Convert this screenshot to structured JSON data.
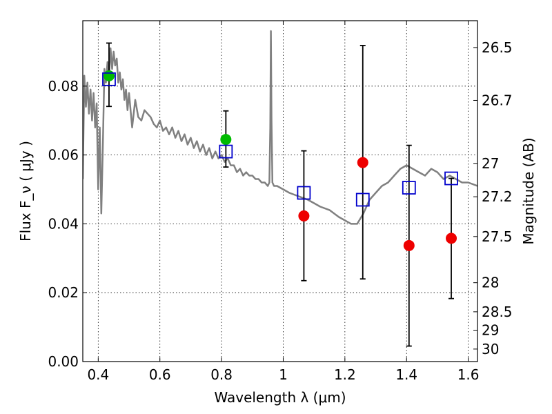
{
  "chart_data": {
    "type": "scatter",
    "title": "",
    "xlabel": "Wavelength  λ (μm)",
    "ylabel": "Flux  F_ν  ( μJy )",
    "y2label": "Magnitude (AB)",
    "xlim": [
      0.35,
      1.63
    ],
    "ylim": [
      0.0,
      0.099
    ],
    "grid": true,
    "xticks": [
      0.4,
      0.6,
      0.8,
      1.0,
      1.2,
      1.4,
      1.6
    ],
    "xtick_labels": [
      "0.4",
      "0.6",
      "0.8",
      "1",
      "1.2",
      "1.4",
      "1.6"
    ],
    "yticks": [
      0.0,
      0.02,
      0.04,
      0.06,
      0.08
    ],
    "ytick_labels": [
      "0.00",
      "0.02",
      "0.04",
      "0.06",
      "0.08"
    ],
    "y2ticks": [
      26.5,
      26.7,
      27.0,
      27.2,
      27.5,
      28.0,
      28.5,
      29.0,
      30.0
    ],
    "y2tick_labels": [
      "26.5",
      "26.7",
      "27",
      "27.2",
      "27.5",
      "28",
      "28.5",
      "29",
      "30"
    ],
    "colors": {
      "template": "#808080",
      "model": "#0000cc",
      "detection": "#00bb00",
      "nondetection": "#ee0000",
      "errorbar": "#000000"
    },
    "series": [
      {
        "marker": "line",
        "x": [
          0.35,
          0.355,
          0.36,
          0.365,
          0.37,
          0.375,
          0.38,
          0.385,
          0.39,
          0.395,
          0.4,
          0.405,
          0.41,
          0.415,
          0.42,
          0.425,
          0.43,
          0.435,
          0.44,
          0.445,
          0.45,
          0.455,
          0.46,
          0.465,
          0.47,
          0.475,
          0.48,
          0.485,
          0.49,
          0.495,
          0.5,
          0.51,
          0.52,
          0.53,
          0.54,
          0.55,
          0.56,
          0.57,
          0.58,
          0.59,
          0.6,
          0.61,
          0.62,
          0.63,
          0.64,
          0.65,
          0.66,
          0.67,
          0.68,
          0.69,
          0.7,
          0.71,
          0.72,
          0.73,
          0.74,
          0.75,
          0.76,
          0.77,
          0.78,
          0.79,
          0.8,
          0.81,
          0.82,
          0.83,
          0.84,
          0.85,
          0.86,
          0.87,
          0.88,
          0.89,
          0.9,
          0.91,
          0.92,
          0.93,
          0.94,
          0.95,
          0.955,
          0.958,
          0.96,
          0.962,
          0.965,
          0.97,
          0.98,
          1.0,
          1.02,
          1.05,
          1.08,
          1.1,
          1.12,
          1.15,
          1.18,
          1.2,
          1.22,
          1.24,
          1.26,
          1.28,
          1.3,
          1.32,
          1.34,
          1.36,
          1.38,
          1.4,
          1.42,
          1.44,
          1.46,
          1.48,
          1.5,
          1.52,
          1.54,
          1.56,
          1.58,
          1.6,
          1.63
        ],
        "y": [
          0.053,
          0.083,
          0.074,
          0.081,
          0.072,
          0.079,
          0.07,
          0.078,
          0.068,
          0.075,
          0.05,
          0.068,
          0.043,
          0.062,
          0.085,
          0.081,
          0.087,
          0.082,
          0.091,
          0.085,
          0.09,
          0.086,
          0.088,
          0.081,
          0.084,
          0.079,
          0.082,
          0.076,
          0.079,
          0.073,
          0.078,
          0.068,
          0.076,
          0.071,
          0.07,
          0.073,
          0.072,
          0.071,
          0.069,
          0.068,
          0.07,
          0.067,
          0.068,
          0.066,
          0.068,
          0.065,
          0.067,
          0.064,
          0.066,
          0.063,
          0.065,
          0.062,
          0.064,
          0.061,
          0.063,
          0.06,
          0.062,
          0.059,
          0.061,
          0.059,
          0.06,
          0.058,
          0.059,
          0.057,
          0.057,
          0.055,
          0.056,
          0.054,
          0.055,
          0.054,
          0.054,
          0.053,
          0.053,
          0.052,
          0.052,
          0.051,
          0.052,
          0.068,
          0.096,
          0.07,
          0.052,
          0.051,
          0.051,
          0.05,
          0.049,
          0.048,
          0.047,
          0.046,
          0.045,
          0.044,
          0.042,
          0.041,
          0.04,
          0.04,
          0.043,
          0.047,
          0.049,
          0.051,
          0.052,
          0.054,
          0.056,
          0.057,
          0.056,
          0.055,
          0.054,
          0.056,
          0.055,
          0.053,
          0.054,
          0.053,
          0.052,
          0.052,
          0.051
        ]
      },
      {
        "marker": "open-square",
        "x": [
          0.435,
          0.814,
          1.067,
          1.258,
          1.408,
          1.545
        ],
        "y": [
          0.082,
          0.061,
          0.049,
          0.047,
          0.0505,
          0.0532
        ]
      },
      {
        "marker": "filled-circle",
        "x": [
          0.435,
          0.814
        ],
        "y": [
          0.083,
          0.0645
        ]
      },
      {
        "marker": "filled-circle",
        "x": [
          1.067,
          1.258,
          1.408,
          1.545
        ],
        "y": [
          0.0423,
          0.0578,
          0.0337,
          0.0358
        ]
      },
      {
        "marker": "errorbar",
        "x": [
          0.435,
          0.814,
          1.067,
          1.258,
          1.408,
          1.545
        ],
        "y_low": [
          0.0741,
          0.0565,
          0.0235,
          0.024,
          0.0045,
          0.0183
        ],
        "y_high": [
          0.0925,
          0.0728,
          0.0612,
          0.0918,
          0.0628,
          0.0532
        ]
      }
    ]
  }
}
